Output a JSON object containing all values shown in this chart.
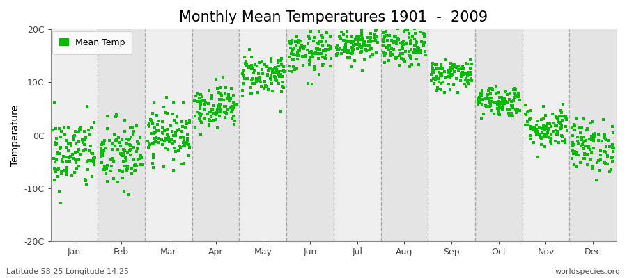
{
  "title": "Monthly Mean Temperatures 1901  -  2009",
  "ylabel": "Temperature",
  "footer_left": "Latitude 58.25 Longitude 14.25",
  "footer_right": "worldspecies.org",
  "legend_label": "Mean Temp",
  "ylim": [
    -20,
    20
  ],
  "yticks": [
    -20,
    -10,
    0,
    10,
    20
  ],
  "ytick_labels": [
    "-20C",
    "-10C",
    "0C",
    "10C",
    "20C"
  ],
  "months": [
    "Jan",
    "Feb",
    "Mar",
    "Apr",
    "May",
    "Jun",
    "Jul",
    "Aug",
    "Sep",
    "Oct",
    "Nov",
    "Dec"
  ],
  "monthly_means": [
    -3.5,
    -3.8,
    0.2,
    5.5,
    11.5,
    15.5,
    17.5,
    16.5,
    11.5,
    6.5,
    1.5,
    -2.0
  ],
  "monthly_stds": [
    3.5,
    3.5,
    2.5,
    2.0,
    2.0,
    2.0,
    1.8,
    1.8,
    1.5,
    1.5,
    2.0,
    2.5
  ],
  "n_years": 109,
  "seed": 42,
  "marker_color": "#00BB00",
  "marker_size": 8,
  "fig_bg_color": "#FFFFFF",
  "plot_bg_color_light": "#F0F0F0",
  "plot_bg_color_dark": "#E2E2E2",
  "title_fontsize": 15,
  "axis_fontsize": 10,
  "tick_fontsize": 9,
  "grid_color": "#999999",
  "grid_linestyle": "--",
  "grid_linewidth": 1.0
}
